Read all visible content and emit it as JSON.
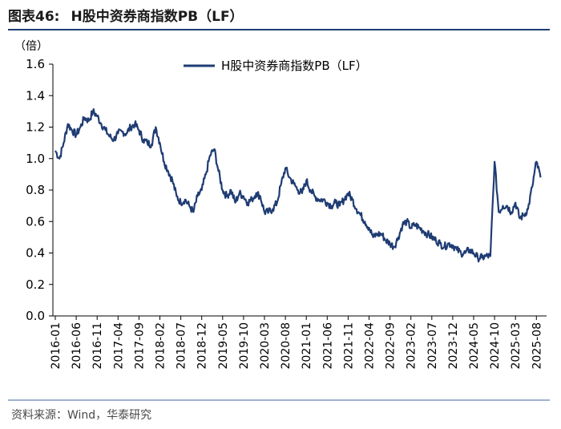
{
  "figure": {
    "number": "图表46:",
    "title": "H股中资券商指数PB（LF）",
    "source": "资料来源：Wind，华泰研究"
  },
  "colors": {
    "series": "#1f3c73",
    "rule_top": "#1f3c73",
    "rule_bottom": "#9fb0cf"
  },
  "chart_data": {
    "type": "line",
    "title": "H股中资券商指数PB（LF）",
    "ylabel": "（倍）",
    "xlabel": "",
    "ylim": [
      0,
      1.6
    ],
    "yticks": [
      0.0,
      0.2,
      0.4,
      0.6,
      0.8,
      1.0,
      1.2,
      1.4,
      1.6
    ],
    "ytick_labels": [
      "0.0",
      "0.2",
      "0.4",
      "0.6",
      "0.8",
      "1.0",
      "1.2",
      "1.4",
      "1.6"
    ],
    "xticks": [
      "2016-01",
      "2016-06",
      "2016-11",
      "2017-04",
      "2017-09",
      "2018-02",
      "2018-07",
      "2018-12",
      "2019-05",
      "2019-10",
      "2020-03",
      "2020-08",
      "2021-01",
      "2021-06",
      "2021-11",
      "2022-04",
      "2022-09",
      "2023-02",
      "2023-07",
      "2023-12",
      "2024-05",
      "2024-10",
      "2025-03",
      "2025-08"
    ],
    "legend": "top-center",
    "grid": false,
    "series": [
      {
        "name": "H股中资券商指数PB（LF）",
        "x": [
          "2016-01",
          "2016-02",
          "2016-03",
          "2016-04",
          "2016-05",
          "2016-06",
          "2016-07",
          "2016-08",
          "2016-09",
          "2016-10",
          "2016-11",
          "2016-12",
          "2017-01",
          "2017-02",
          "2017-03",
          "2017-04",
          "2017-05",
          "2017-06",
          "2017-07",
          "2017-08",
          "2017-09",
          "2017-10",
          "2017-11",
          "2017-12",
          "2018-01",
          "2018-02",
          "2018-03",
          "2018-04",
          "2018-05",
          "2018-06",
          "2018-07",
          "2018-08",
          "2018-09",
          "2018-10",
          "2018-11",
          "2018-12",
          "2019-01",
          "2019-02",
          "2019-03",
          "2019-04",
          "2019-05",
          "2019-06",
          "2019-07",
          "2019-08",
          "2019-09",
          "2019-10",
          "2019-11",
          "2019-12",
          "2020-01",
          "2020-02",
          "2020-03",
          "2020-04",
          "2020-05",
          "2020-06",
          "2020-07",
          "2020-08",
          "2020-09",
          "2020-10",
          "2020-11",
          "2020-12",
          "2021-01",
          "2021-02",
          "2021-03",
          "2021-04",
          "2021-05",
          "2021-06",
          "2021-07",
          "2021-08",
          "2021-09",
          "2021-10",
          "2021-11",
          "2021-12",
          "2022-01",
          "2022-02",
          "2022-03",
          "2022-04",
          "2022-05",
          "2022-06",
          "2022-07",
          "2022-08",
          "2022-09",
          "2022-10",
          "2022-11",
          "2022-12",
          "2023-01",
          "2023-02",
          "2023-03",
          "2023-04",
          "2023-05",
          "2023-06",
          "2023-07",
          "2023-08",
          "2023-09",
          "2023-10",
          "2023-11",
          "2023-12",
          "2024-01",
          "2024-02",
          "2024-03",
          "2024-04",
          "2024-05",
          "2024-06",
          "2024-07",
          "2024-08",
          "2024-09",
          "2024-10",
          "2024-11",
          "2024-12",
          "2025-01",
          "2025-02",
          "2025-03",
          "2025-04",
          "2025-05",
          "2025-06",
          "2025-07",
          "2025-08",
          "2025-09"
        ],
        "values": [
          1.05,
          1.0,
          1.1,
          1.22,
          1.18,
          1.15,
          1.2,
          1.26,
          1.24,
          1.3,
          1.27,
          1.22,
          1.18,
          1.14,
          1.12,
          1.16,
          1.17,
          1.16,
          1.2,
          1.22,
          1.18,
          1.12,
          1.1,
          1.09,
          1.2,
          1.1,
          0.98,
          0.92,
          0.86,
          0.76,
          0.72,
          0.74,
          0.7,
          0.66,
          0.76,
          0.8,
          0.9,
          1.02,
          1.06,
          0.92,
          0.8,
          0.76,
          0.8,
          0.72,
          0.78,
          0.76,
          0.72,
          0.74,
          0.78,
          0.76,
          0.66,
          0.66,
          0.68,
          0.72,
          0.84,
          0.94,
          0.88,
          0.84,
          0.8,
          0.78,
          0.86,
          0.8,
          0.76,
          0.74,
          0.74,
          0.72,
          0.7,
          0.72,
          0.7,
          0.74,
          0.78,
          0.74,
          0.68,
          0.64,
          0.6,
          0.56,
          0.5,
          0.52,
          0.52,
          0.48,
          0.46,
          0.44,
          0.5,
          0.58,
          0.6,
          0.56,
          0.58,
          0.56,
          0.54,
          0.52,
          0.5,
          0.48,
          0.46,
          0.44,
          0.46,
          0.45,
          0.42,
          0.4,
          0.4,
          0.42,
          0.4,
          0.37,
          0.37,
          0.38,
          0.38,
          0.98,
          0.66,
          0.7,
          0.7,
          0.66,
          0.72,
          0.62,
          0.64,
          0.68,
          0.82,
          0.98,
          0.88
        ]
      }
    ]
  }
}
